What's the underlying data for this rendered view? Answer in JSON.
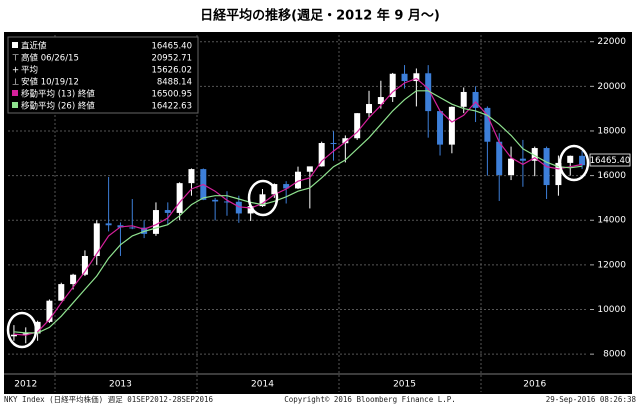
{
  "chart_data": {
    "type": "candlestick",
    "title": "日経平均の推移(週足・2012 年 9 月〜)",
    "categories": [
      null,
      "2012",
      null,
      null,
      null,
      null,
      null,
      null,
      null,
      "2013",
      null,
      null,
      null,
      null,
      null,
      null,
      null,
      null,
      null,
      null,
      null,
      "2014",
      null,
      null,
      null,
      null,
      null,
      null,
      null,
      null,
      null,
      null,
      null,
      "2015",
      null,
      null,
      null,
      null,
      null,
      null,
      null,
      null,
      null,
      null,
      "2016",
      null,
      null,
      null,
      null
    ],
    "open": [
      8800,
      8870,
      8928,
      9446,
      10395,
      11139,
      11559,
      12398,
      13860,
      13775,
      13677,
      13668,
      13389,
      14456,
      14328,
      15662,
      16291,
      14915,
      14841,
      14828,
      14304,
      14632,
      15162,
      15621,
      15425,
      16174,
      16414,
      17460,
      17451,
      17674,
      18798,
      19207,
      19520,
      20563,
      20236,
      20585,
      18890,
      17388,
      19083,
      19747,
      19034,
      17518,
      16027,
      16759,
      16666,
      17235,
      15576,
      16569,
      16887
    ],
    "high": [
      9300,
      9200,
      9500,
      10450,
      11200,
      11600,
      12650,
      14000,
      15940,
      13900,
      14950,
      14000,
      14800,
      14800,
      15700,
      16320,
      16320,
      15000,
      15300,
      15100,
      14700,
      15400,
      15650,
      15750,
      16400,
      16400,
      17520,
      17990,
      17800,
      18800,
      19800,
      20250,
      20600,
      20952.71,
      20800,
      20950,
      18900,
      19100,
      19950,
      20000,
      19100,
      17900,
      17300,
      17600,
      17300,
      17300,
      16900,
      16900,
      17100
    ],
    "low": [
      8600,
      8488.14,
      8600,
      9400,
      10400,
      10900,
      11500,
      12000,
      13500,
      12400,
      13600,
      13200,
      13300,
      13800,
      14000,
      15100,
      14900,
      13995,
      14200,
      13885,
      13965,
      14600,
      15000,
      14750,
      15400,
      14529,
      16400,
      16670,
      16590,
      17600,
      18600,
      19000,
      19300,
      19900,
      19100,
      17700,
      16900,
      17000,
      18800,
      18400,
      16000,
      14865,
      15800,
      15500,
      15975,
      14952,
      15100,
      16000,
      16300
    ],
    "close": [
      8870,
      8928,
      9446,
      10395,
      11139,
      11559,
      12398,
      13860,
      13775,
      13677,
      13668,
      13389,
      14456,
      14328,
      15662,
      16291,
      14915,
      14841,
      14828,
      14304,
      14632,
      15162,
      15621,
      15425,
      16174,
      16414,
      17460,
      17451,
      17674,
      18798,
      19207,
      19520,
      20563,
      20236,
      20585,
      18890,
      17388,
      19083,
      19747,
      19034,
      17518,
      16027,
      16759,
      16666,
      17235,
      15576,
      16569,
      16887,
      16465.4
    ],
    "up_color": "#ffffff",
    "down_color": "#3d7fd9",
    "ylim": [
      7200,
      22300
    ],
    "yticks": [
      8000,
      10000,
      12000,
      14000,
      16000,
      18000,
      20000,
      22000
    ],
    "grid": true,
    "lines": [
      {
        "name": "移動平均 (13) 終値",
        "last_label": "16500.95",
        "color": "#d6219c",
        "values": [
          8900,
          8850,
          9000,
          9550,
          10300,
          11000,
          11700,
          12500,
          13300,
          13700,
          13750,
          13600,
          13800,
          14100,
          14800,
          15400,
          15600,
          15300,
          14900,
          14600,
          14550,
          14750,
          15150,
          15400,
          15750,
          15900,
          16650,
          17100,
          17500,
          17950,
          18600,
          19150,
          19750,
          20150,
          20350,
          19900,
          18900,
          18400,
          18700,
          19300,
          18700,
          17500,
          16800,
          16500,
          16800,
          16400,
          16300,
          16400,
          16500.95
        ]
      },
      {
        "name": "移動平均 (26) 終値",
        "last_label": "16422.63",
        "color": "#8fe28f",
        "values": [
          9000,
          8950,
          8950,
          9200,
          9700,
          10300,
          10900,
          11500,
          12300,
          12900,
          13300,
          13500,
          13650,
          13800,
          14200,
          14700,
          15000,
          15100,
          15100,
          14950,
          14800,
          14700,
          14850,
          15050,
          15300,
          15450,
          15900,
          16400,
          16700,
          17200,
          17700,
          18300,
          18900,
          19400,
          19800,
          19800,
          19500,
          19200,
          19000,
          18900,
          18700,
          18300,
          17800,
          17200,
          16900,
          16600,
          16400,
          16350,
          16422.63
        ]
      }
    ],
    "stats": [
      {
        "label": "直近値",
        "value": "16465.40"
      },
      {
        "label": "高値 06/26/15",
        "value": "20952.71"
      },
      {
        "label": "平均",
        "value": "15626.02"
      },
      {
        "label": "安値 10/19/12",
        "value": "8488.14"
      }
    ]
  },
  "footer": {
    "left": "NKY Index (日経平均株価) 週足 01SEP2012-28SEP2016",
    "center": "Copyright© 2016 Bloomberg Finance L.P.",
    "right": "29-Sep-2016 08:26:38"
  }
}
